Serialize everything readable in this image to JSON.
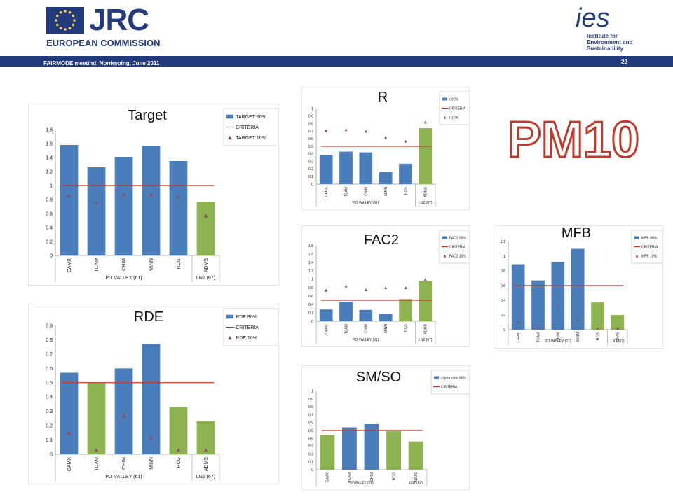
{
  "header": {
    "org": "JRC",
    "commission": "EUROPEAN COMMISSION",
    "meeting": "FAIRMODE meetind, Norrkoping, June 2011",
    "page": "29",
    "ies_logo_text": [
      "Institute for",
      "Environment and",
      "Sustainability"
    ],
    "ies_mark": "ies"
  },
  "big_label": "PM10",
  "colors": {
    "blue": "#4a7ebb",
    "green": "#8db350",
    "red": "#c0392b",
    "marker": "#8b4a6b",
    "navy": "#233a7c"
  },
  "chart_data": [
    {
      "id": "target",
      "type": "bar",
      "panel_title": "Target",
      "categories": [
        "CAMX",
        "TCAM",
        "CHIM",
        "MINN",
        "RCG",
        "ADMS"
      ],
      "group_labels": [
        "PO VALLEY (61)",
        "LN2 (67)"
      ],
      "values": [
        1.58,
        1.26,
        1.41,
        1.57,
        1.35,
        0.77
      ],
      "bar_colors": [
        "blue",
        "blue",
        "blue",
        "blue",
        "blue",
        "green"
      ],
      "markers": [
        0.86,
        0.76,
        0.87,
        0.87,
        0.84,
        0.57
      ],
      "criteria": 1,
      "ylim": [
        0,
        1.8
      ],
      "ytick_step": 0.2,
      "ytick_labels": [
        "0",
        "0.2",
        "0.4",
        "0.6",
        "0.8",
        "1",
        "1.2",
        "1.4",
        "1.6",
        "1.8"
      ],
      "legend": [
        "TARGET 90%",
        "CRITERIA",
        "TARGET 10%"
      ]
    },
    {
      "id": "r",
      "type": "bar",
      "panel_title": "R",
      "categories": [
        "CAMX",
        "TCAM",
        "CHIM",
        "MINN",
        "RCG",
        "ADMS"
      ],
      "group_labels": [
        "PO VALLEY (61)",
        "LN2 (67)"
      ],
      "values": [
        0.38,
        0.43,
        0.42,
        0.16,
        0.27,
        0.74
      ],
      "bar_colors": [
        "blue",
        "blue",
        "blue",
        "blue",
        "blue",
        "green"
      ],
      "markers": [
        0.71,
        0.72,
        0.7,
        0.62,
        0.57,
        0.82
      ],
      "criteria": 0.5,
      "ylim": [
        0,
        1
      ],
      "ytick_step": 0.1,
      "ytick_labels": [
        "0",
        "0.1",
        "0.2",
        "0.3",
        "0.4",
        "0.5",
        "0.6",
        "0.7",
        "0.8",
        "0.9",
        "1"
      ],
      "legend": [
        "r 90%",
        "CRITERIA",
        "r 10%"
      ]
    },
    {
      "id": "fac2",
      "type": "bar",
      "panel_title": "FAC2",
      "categories": [
        "CAMX",
        "TCAM",
        "CHIM",
        "MINN",
        "RCG",
        "ADMS"
      ],
      "group_labels": [
        "PO VALLEY (61)",
        "LN2 (67)"
      ],
      "values": [
        0.28,
        0.46,
        0.27,
        0.18,
        0.53,
        0.96
      ],
      "bar_colors": [
        "blue",
        "blue",
        "blue",
        "blue",
        "green",
        "green"
      ],
      "markers": [
        0.74,
        0.84,
        0.75,
        0.8,
        0.8,
        1.0
      ],
      "criteria": 0.5,
      "ylim": [
        0,
        1.8
      ],
      "ytick_step": 0.2,
      "ytick_labels": [
        "0",
        "0.2",
        "0.4",
        "0.6",
        "0.8",
        "1",
        "1.2",
        "1.4",
        "1.6",
        "1.8"
      ],
      "legend": [
        "FAC2 90%",
        "CRITERIA",
        "FAC2 10%"
      ]
    },
    {
      "id": "mfb",
      "type": "bar",
      "panel_title": "MFB",
      "categories": [
        "CAMX",
        "TCAM",
        "CHIM",
        "MINN",
        "RCG",
        "ADMS"
      ],
      "group_labels": [
        "PO VALLEY (61)",
        "LN2 (67)"
      ],
      "values": [
        0.89,
        0.67,
        0.92,
        1.1,
        0.37,
        0.2
      ],
      "bar_colors": [
        "blue",
        "blue",
        "blue",
        "blue",
        "green",
        "green"
      ],
      "markers": [
        0.1,
        0.04,
        0.32,
        0.13,
        0.02,
        0.02
      ],
      "criteria": 0.6,
      "ylim": [
        0,
        1.2
      ],
      "ytick_step": 0.2,
      "ytick_labels": [
        "0",
        "0.2",
        "0.4",
        "0.6",
        "0.8",
        "1",
        "1.2"
      ],
      "legend": [
        "MFB 90%",
        "CRITERIA",
        "MFB 10%"
      ]
    },
    {
      "id": "rde",
      "type": "bar",
      "panel_title": "RDE",
      "categories": [
        "CAMX",
        "TCAM",
        "CHIM",
        "MINN",
        "RCG",
        "ADMS"
      ],
      "group_labels": [
        "PO VALLEY (61)",
        "LN2 (67)"
      ],
      "values": [
        0.57,
        0.5,
        0.6,
        0.77,
        0.33,
        0.23
      ],
      "bar_colors": [
        "blue",
        "green",
        "blue",
        "blue",
        "green",
        "green"
      ],
      "markers": [
        0.15,
        0.03,
        0.27,
        0.12,
        0.03,
        0.03
      ],
      "criteria": 0.5,
      "ylim": [
        0,
        0.9
      ],
      "ytick_step": 0.1,
      "ytick_labels": [
        "0",
        "0.1",
        "0.2",
        "0.3",
        "0.4",
        "0.5",
        "0.6",
        "0.7",
        "0.8",
        "0.9"
      ],
      "legend": [
        "RDE 90%",
        "CRITERIA",
        "RDE 10%"
      ]
    },
    {
      "id": "smso",
      "type": "bar",
      "panel_title": "SM/SO",
      "categories": [
        "CAMX",
        "TCAM",
        "CHIM",
        "RCG",
        "ADMS"
      ],
      "group_labels": [
        "PO VALLEY (61)",
        "LN2 (67)"
      ],
      "values": [
        0.44,
        0.54,
        0.58,
        0.49,
        0.36
      ],
      "bar_colors": [
        "green",
        "blue",
        "blue",
        "green",
        "green"
      ],
      "markers": null,
      "criteria": 0.5,
      "ylim": [
        0,
        1
      ],
      "ytick_step": 0.1,
      "ytick_labels": [
        "0",
        "0.1",
        "0.2",
        "0.3",
        "0.4",
        "0.5",
        "0.6",
        "0.7",
        "0.8",
        "0.9",
        "1"
      ],
      "legend": [
        "sigma ratio 90%",
        "CRITERIA"
      ]
    }
  ]
}
